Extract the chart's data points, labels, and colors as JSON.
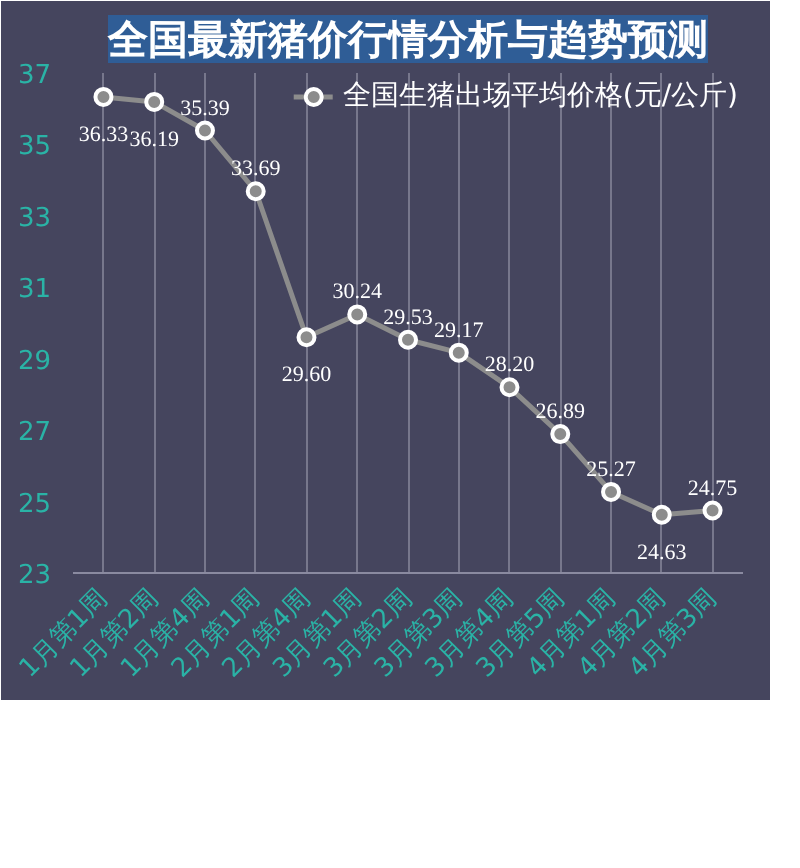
{
  "chart_data": {
    "type": "line",
    "title": "全国最新猪价行情分析与趋势预测",
    "categories": [
      "1月第1周",
      "1月第2周",
      "1月第4周",
      "2月第1周",
      "2月第4周",
      "3月第1周",
      "3月第2周",
      "3月第3周",
      "3月第4周",
      "3月第5周",
      "4月第1周",
      "4月第2周",
      "4月第3周"
    ],
    "series": [
      {
        "name": "全国生猪出场平均价格(元/公斤)",
        "color": "#8c8c8c",
        "values": [
          36.33,
          36.19,
          35.39,
          33.69,
          29.6,
          30.24,
          29.53,
          29.17,
          28.2,
          26.89,
          25.27,
          24.63,
          24.75
        ],
        "value_labels": [
          "36.33",
          "36.19",
          "35.39",
          "33.69",
          "29.60",
          "30.24",
          "29.53",
          "29.17",
          "28.20",
          "26.89",
          "25.27",
          "24.63",
          "24.75"
        ]
      }
    ],
    "ylim": [
      23,
      37
    ],
    "yticks": [
      23,
      25,
      27,
      29,
      31,
      33,
      35,
      37
    ],
    "grid": "x",
    "legend": "top right",
    "marker": "circle",
    "line_style": "solid"
  }
}
